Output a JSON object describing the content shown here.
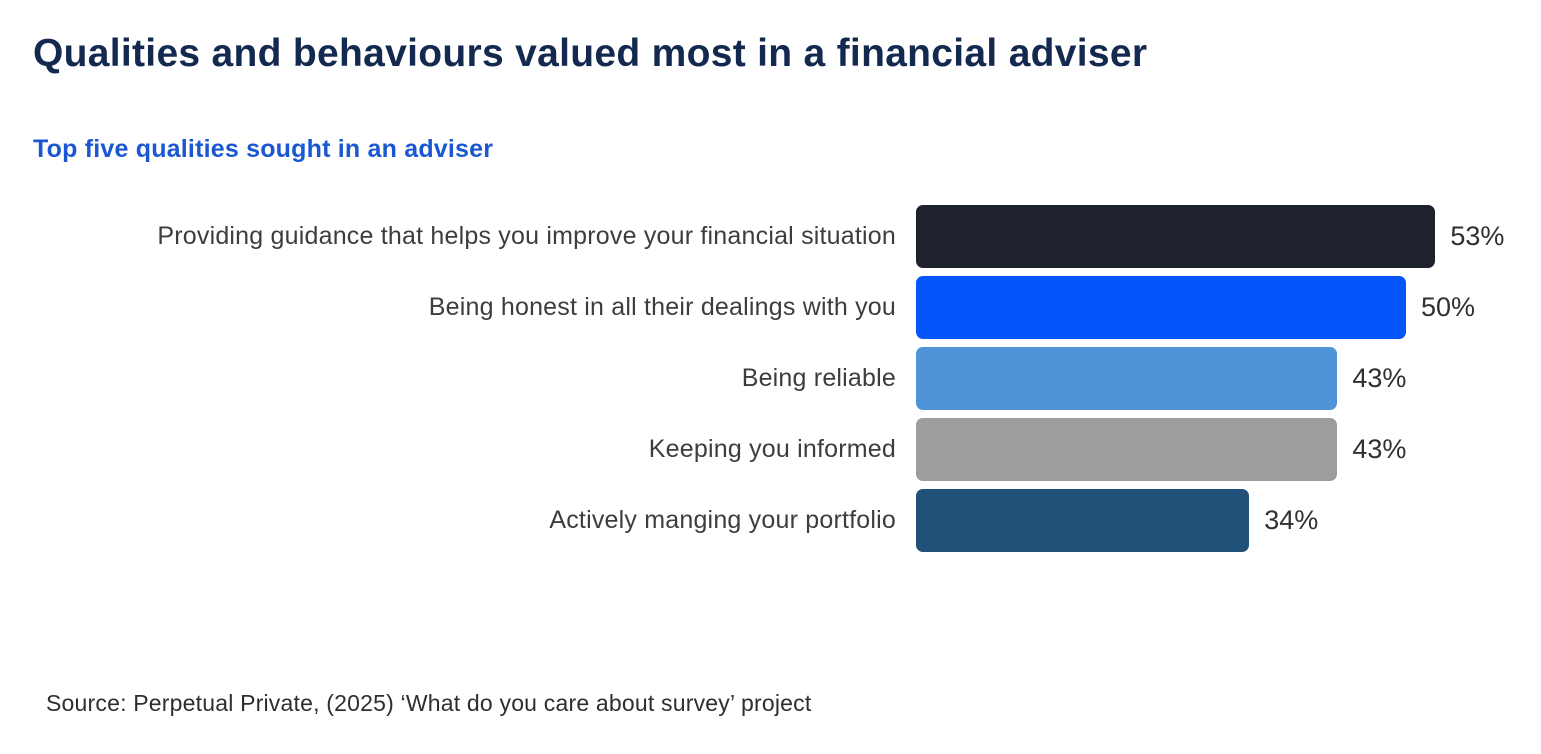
{
  "page": {
    "title": "Qualities and behaviours valued most in a financial adviser",
    "subtitle": "Top five qualities sought in an adviser",
    "source": "Source:  Perpetual Private, (2025) ‘What do you care about survey’ project"
  },
  "colors": {
    "title_navy": "#13294f",
    "subtitle_blue": "#1a57d0",
    "label_gray": "#3d3d3d",
    "value_gray": "#2f3033"
  },
  "chart_data": {
    "type": "bar",
    "orientation": "horizontal",
    "title": "Qualities and behaviours valued most in a financial adviser",
    "subtitle": "Top five qualities sought in an adviser",
    "categories": [
      "Providing guidance that helps you improve your financial situation",
      "Being honest in all their dealings with you",
      "Being reliable",
      "Keeping you informed",
      "Actively manging your portfolio"
    ],
    "values": [
      53,
      50,
      43,
      43,
      34
    ],
    "value_labels": [
      "53%",
      "50%",
      "43%",
      "43%",
      "34%"
    ],
    "bar_colors": [
      "#1e222d",
      "#0455fa",
      "#4f93d8",
      "#9d9d9d",
      "#215079"
    ],
    "xlim": [
      0,
      55
    ],
    "grid": false,
    "legend": false,
    "value_label_position": "right-of-bar",
    "source": "Source:  Perpetual Private, (2025) ‘What do you care about survey’ project"
  }
}
